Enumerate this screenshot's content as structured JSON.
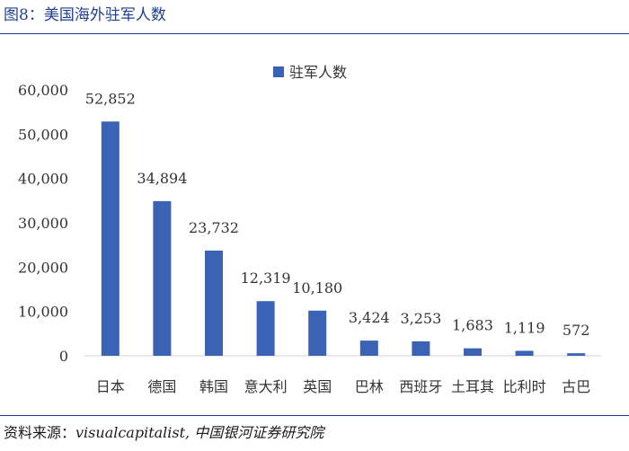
{
  "figure": {
    "title": "图8：美国海外驻军人数",
    "source_label": "资料来源：",
    "source_text": "visualcapitalist,  中国银河证券研究院"
  },
  "chart_data": {
    "type": "bar",
    "title": "",
    "xlabel": "",
    "ylabel": "",
    "legend": {
      "position": "top-center"
    },
    "grid": false,
    "ylim": [
      0,
      60000
    ],
    "yticks": [
      0,
      10000,
      20000,
      30000,
      40000,
      50000,
      60000
    ],
    "ytick_labels": [
      "0",
      "10,000",
      "20,000",
      "30,000",
      "40,000",
      "50,000",
      "60,000"
    ],
    "categories": [
      "日本",
      "德国",
      "韩国",
      "意大利",
      "英国",
      "巴林",
      "西班牙",
      "土耳其",
      "比利时",
      "古巴"
    ],
    "series": [
      {
        "name": "驻军人数",
        "color": "#3a63b6",
        "values": [
          52852,
          34894,
          23732,
          12319,
          10180,
          3424,
          3253,
          1683,
          1119,
          572
        ],
        "labels": [
          "52,852",
          "34,894",
          "23,732",
          "12,319",
          "10,180",
          "3,424",
          "3,253",
          "1,683",
          "1,119",
          "572"
        ]
      }
    ]
  }
}
